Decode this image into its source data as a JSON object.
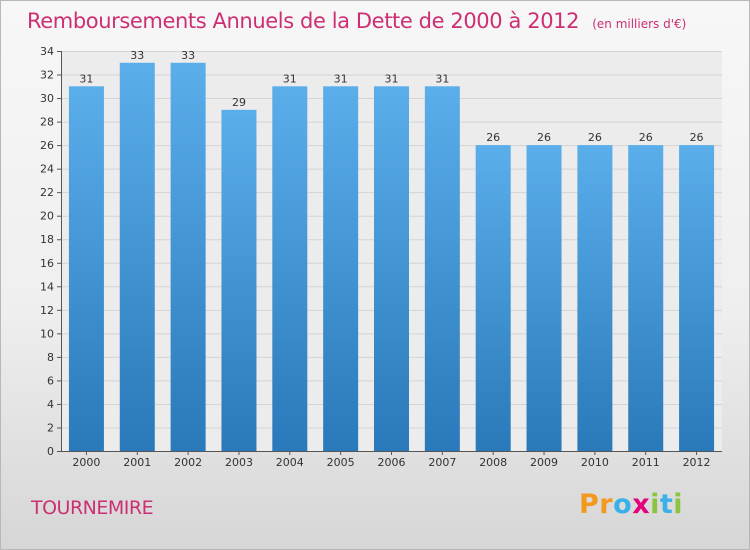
{
  "chart_data": {
    "type": "bar",
    "title": "Remboursements Annuels de la Dette de 2000 à 2012",
    "unit_note": "(en milliers d'€)",
    "categories": [
      "2000",
      "2001",
      "2002",
      "2003",
      "2004",
      "2005",
      "2006",
      "2007",
      "2008",
      "2009",
      "2010",
      "2011",
      "2012"
    ],
    "values": [
      31,
      33,
      33,
      29,
      31,
      31,
      31,
      31,
      26,
      26,
      26,
      26,
      26
    ],
    "data_labels": [
      "31",
      "33",
      "33",
      "29",
      "31",
      "31",
      "31",
      "31",
      "26",
      "26",
      "26",
      "26",
      "26"
    ],
    "ylim": [
      0,
      34
    ],
    "yticks": [
      0,
      2,
      4,
      6,
      8,
      10,
      12,
      14,
      16,
      18,
      20,
      22,
      24,
      26,
      28,
      30,
      32,
      34
    ],
    "ytick_labels": [
      "0",
      "2",
      "4",
      "6",
      "8",
      "10",
      "12",
      "14",
      "16",
      "18",
      "20",
      "22",
      "24",
      "26",
      "28",
      "30",
      "32",
      "34"
    ],
    "grid": true,
    "bar_color_top": "#5aaeea",
    "bar_color_bottom": "#2a79ba"
  },
  "place_name": "TOURNEMIRE",
  "logo": {
    "letters": [
      "P",
      "r",
      "o",
      "x",
      "i",
      "t",
      "i"
    ],
    "colors": [
      "#f39a1e",
      "#f39a1e",
      "#3ab0e8",
      "#e5007e",
      "#8bc43f",
      "#3ab0e8",
      "#8bc43f"
    ]
  }
}
